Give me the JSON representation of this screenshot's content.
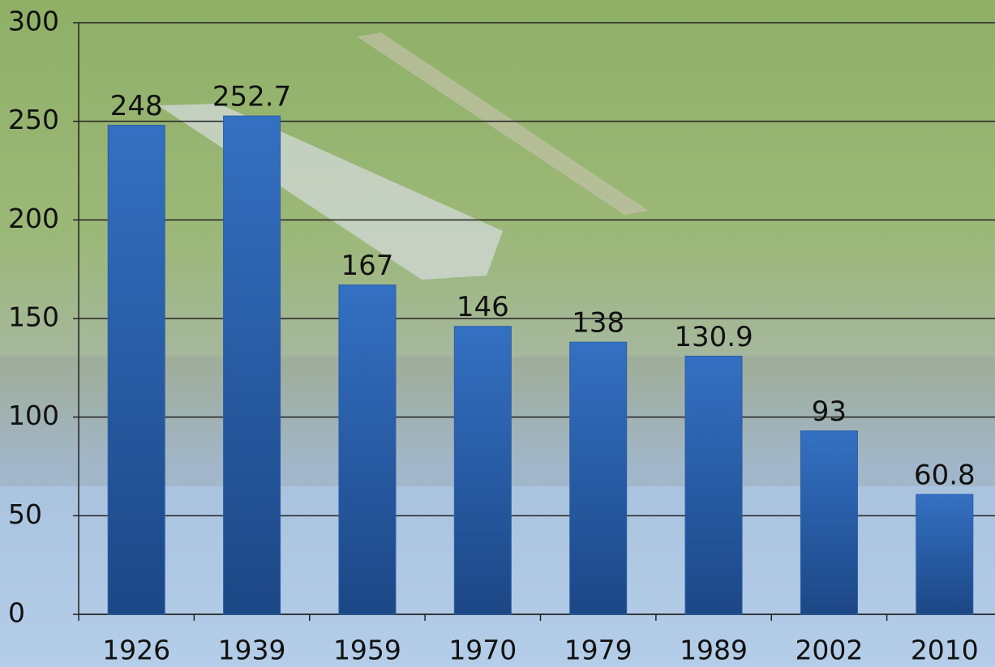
{
  "chart_data": {
    "type": "bar",
    "categories": [
      "1926",
      "1939",
      "1959",
      "1970",
      "1979",
      "1989",
      "2002",
      "2010"
    ],
    "values": [
      248,
      252.7,
      167,
      146,
      138,
      130.9,
      93,
      60.8
    ],
    "color": "#2a5fa8",
    "ylim": [
      0,
      300
    ],
    "yticks": [
      0,
      50,
      100,
      150,
      200,
      250,
      300
    ],
    "grid": true
  }
}
